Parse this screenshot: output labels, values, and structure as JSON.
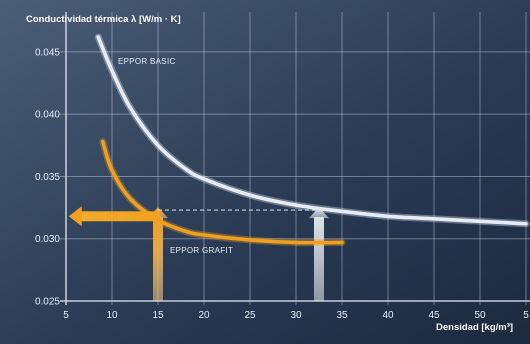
{
  "chart_data": {
    "type": "line",
    "ylabel": "Conductividad térmica λ [W/m · K]",
    "xlabel": "Densidad [kg/m³]",
    "x_ticks": [
      "5",
      "10",
      "15",
      "20",
      "25",
      "30",
      "35",
      "40",
      "45",
      "50",
      "5"
    ],
    "y_ticks": [
      "0.045",
      "0.040",
      "0.035",
      "0.030",
      "0.025"
    ],
    "xlim": [
      5,
      55
    ],
    "ylim": [
      0.025,
      0.047
    ],
    "grid": true,
    "series": [
      {
        "name": "EPPOR BASIC",
        "color": "#e6ecf5",
        "x": [
          8.5,
          10,
          12,
          15,
          18,
          20,
          25,
          30,
          35,
          40,
          45,
          50,
          55
        ],
        "y": [
          0.0462,
          0.0435,
          0.0405,
          0.0375,
          0.0356,
          0.0348,
          0.0335,
          0.0327,
          0.0322,
          0.0318,
          0.0316,
          0.0314,
          0.0312
        ]
      },
      {
        "name": "EPPOR GRAFIT",
        "color": "#f0a020",
        "x": [
          9,
          10,
          12,
          15,
          18,
          20,
          25,
          30,
          35
        ],
        "y": [
          0.0378,
          0.0355,
          0.0332,
          0.0315,
          0.0306,
          0.0303,
          0.0299,
          0.0297,
          0.0297
        ]
      }
    ],
    "annotations": [
      {
        "kind": "vertical-arrow",
        "x": 15,
        "y_from": 0.025,
        "y_to": 0.0323,
        "color": "#f0a020"
      },
      {
        "kind": "vertical-arrow",
        "x": 32.5,
        "y_from": 0.025,
        "y_to": 0.0323,
        "color": "#d8dde6"
      },
      {
        "kind": "horizontal-arrow",
        "y": 0.0318,
        "x_from": 15,
        "x_to": 5.3,
        "color": "#f0a020"
      },
      {
        "kind": "dashed-line",
        "y": 0.0323,
        "x_from": 15,
        "x_to": 32.5,
        "color": "#c8d0dc"
      }
    ]
  }
}
